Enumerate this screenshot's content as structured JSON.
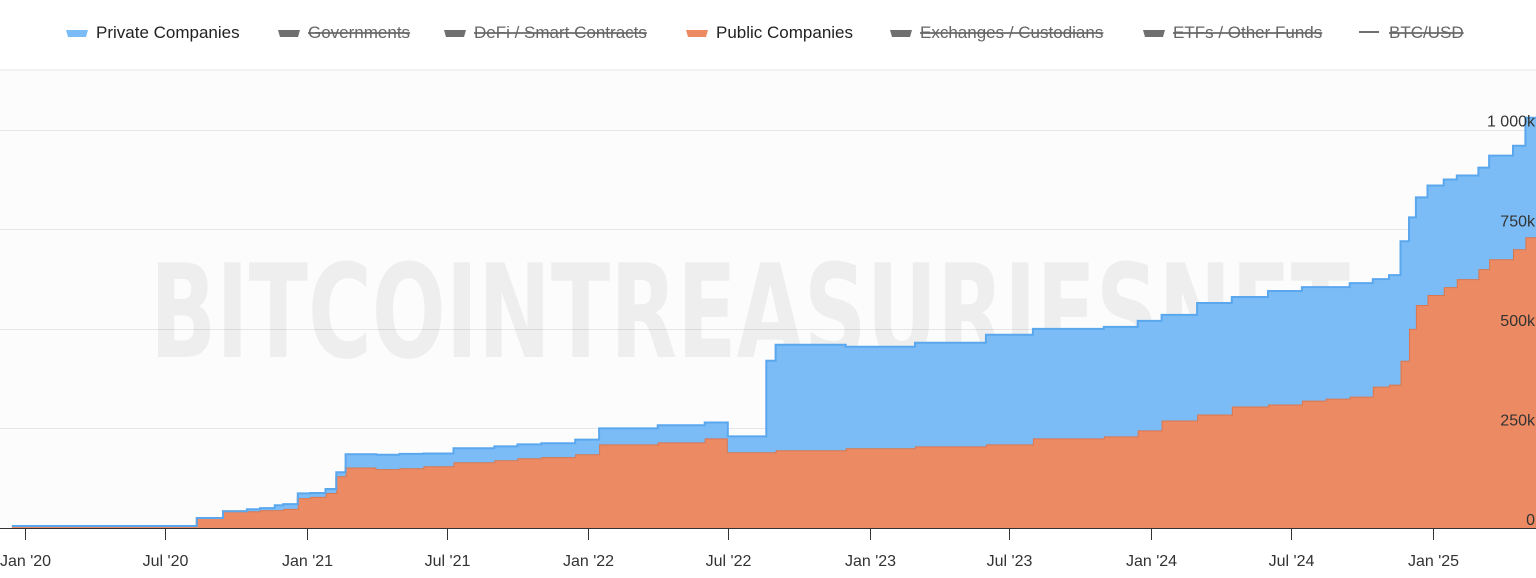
{
  "legend": [
    {
      "label": "Private Companies",
      "color": "#7cbcf6",
      "hidden": false,
      "symbol": "area"
    },
    {
      "label": "Governments",
      "color": "#6f6f6f",
      "hidden": true,
      "symbol": "area"
    },
    {
      "label": "DeFi / Smart Contracts",
      "color": "#6f6f6f",
      "hidden": true,
      "symbol": "area"
    },
    {
      "label": "Public Companies",
      "color": "#ec8a63",
      "hidden": false,
      "symbol": "area"
    },
    {
      "label": "Exchanges / Custodians",
      "color": "#6f6f6f",
      "hidden": true,
      "symbol": "area"
    },
    {
      "label": "ETFs / Other Funds",
      "color": "#6f6f6f",
      "hidden": true,
      "symbol": "area"
    },
    {
      "label": "BTC/USD",
      "color": "#6f6f6f",
      "hidden": true,
      "symbol": "line"
    }
  ],
  "watermark": {
    "text": "BITCOINTREASURIESNET",
    "tm": "tm"
  },
  "chart_data": {
    "type": "area",
    "stacked": true,
    "step": true,
    "x_start": "2019-12-15",
    "x_end": "2025-05-25",
    "ylim": [
      0,
      1150000
    ],
    "grid": true,
    "legend_position": "top",
    "y_axis_position": "right",
    "x_ticks": [
      {
        "date": "2020-01-01",
        "label": "Jan '20"
      },
      {
        "date": "2020-07-01",
        "label": "Jul '20"
      },
      {
        "date": "2021-01-01",
        "label": "Jan '21"
      },
      {
        "date": "2021-07-01",
        "label": "Jul '21"
      },
      {
        "date": "2022-01-01",
        "label": "Jan '22"
      },
      {
        "date": "2022-07-01",
        "label": "Jul '22"
      },
      {
        "date": "2023-01-01",
        "label": "Jan '23"
      },
      {
        "date": "2023-07-01",
        "label": "Jul '23"
      },
      {
        "date": "2024-01-01",
        "label": "Jan '24"
      },
      {
        "date": "2024-07-01",
        "label": "Jul '24"
      },
      {
        "date": "2025-01-01",
        "label": "Jan '25"
      }
    ],
    "y_ticks": [
      {
        "value": 0,
        "label": "0"
      },
      {
        "value": 250000,
        "label": "250k"
      },
      {
        "value": 500000,
        "label": "500k"
      },
      {
        "value": 750000,
        "label": "750k"
      },
      {
        "value": 1000000,
        "label": "1 000k"
      }
    ],
    "series": [
      {
        "name": "Public Companies",
        "color": "#ec8a63",
        "points": [
          [
            "2019-12-15",
            5000
          ],
          [
            "2020-08-10",
            5000
          ],
          [
            "2020-08-11",
            25000
          ],
          [
            "2020-09-14",
            42000
          ],
          [
            "2020-11-01",
            45000
          ],
          [
            "2020-12-01",
            48000
          ],
          [
            "2020-12-20",
            75000
          ],
          [
            "2021-01-05",
            78000
          ],
          [
            "2021-01-25",
            88000
          ],
          [
            "2021-02-08",
            130000
          ],
          [
            "2021-02-20",
            152000
          ],
          [
            "2021-04-01",
            148000
          ],
          [
            "2021-05-01",
            150000
          ],
          [
            "2021-06-01",
            155000
          ],
          [
            "2021-07-10",
            165000
          ],
          [
            "2021-09-01",
            170000
          ],
          [
            "2021-10-01",
            175000
          ],
          [
            "2021-11-01",
            178000
          ],
          [
            "2021-12-15",
            185000
          ],
          [
            "2022-01-15",
            210000
          ],
          [
            "2022-04-01",
            215000
          ],
          [
            "2022-06-01",
            225000
          ],
          [
            "2022-07-01",
            190000
          ],
          [
            "2022-09-01",
            195000
          ],
          [
            "2022-12-01",
            200000
          ],
          [
            "2023-03-01",
            205000
          ],
          [
            "2023-06-01",
            210000
          ],
          [
            "2023-08-01",
            225000
          ],
          [
            "2023-11-01",
            230000
          ],
          [
            "2023-12-15",
            245000
          ],
          [
            "2024-01-15",
            270000
          ],
          [
            "2024-03-01",
            285000
          ],
          [
            "2024-04-15",
            305000
          ],
          [
            "2024-06-01",
            310000
          ],
          [
            "2024-07-15",
            320000
          ],
          [
            "2024-08-15",
            325000
          ],
          [
            "2024-09-15",
            330000
          ],
          [
            "2024-10-15",
            355000
          ],
          [
            "2024-11-05",
            360000
          ],
          [
            "2024-11-20",
            420000
          ],
          [
            "2024-12-01",
            500000
          ],
          [
            "2024-12-10",
            560000
          ],
          [
            "2024-12-25",
            585000
          ],
          [
            "2025-01-15",
            605000
          ],
          [
            "2025-02-01",
            625000
          ],
          [
            "2025-03-01",
            650000
          ],
          [
            "2025-03-15",
            675000
          ],
          [
            "2025-04-15",
            700000
          ],
          [
            "2025-05-01",
            730000
          ],
          [
            "2025-05-25",
            760000
          ]
        ]
      },
      {
        "name": "Private Companies",
        "color": "#7cbcf6",
        "points": [
          [
            "2019-12-15",
            0
          ],
          [
            "2020-08-11",
            0
          ],
          [
            "2020-10-15",
            5000
          ],
          [
            "2020-11-20",
            12000
          ],
          [
            "2021-01-05",
            10000
          ],
          [
            "2021-02-20",
            33000
          ],
          [
            "2021-04-01",
            36000
          ],
          [
            "2021-06-01",
            32000
          ],
          [
            "2021-07-10",
            35000
          ],
          [
            "2021-09-01",
            35000
          ],
          [
            "2021-12-15",
            37000
          ],
          [
            "2022-01-15",
            40000
          ],
          [
            "2022-04-01",
            43000
          ],
          [
            "2022-06-01",
            40000
          ],
          [
            "2022-07-01",
            40000
          ],
          [
            "2022-08-20",
            230000
          ],
          [
            "2022-09-01",
            265000
          ],
          [
            "2022-12-01",
            255000
          ],
          [
            "2023-03-01",
            260000
          ],
          [
            "2023-06-01",
            275000
          ],
          [
            "2023-08-01",
            275000
          ],
          [
            "2023-11-01",
            275000
          ],
          [
            "2023-12-15",
            275000
          ],
          [
            "2024-01-15",
            265000
          ],
          [
            "2024-03-01",
            280000
          ],
          [
            "2024-04-15",
            275000
          ],
          [
            "2024-06-01",
            285000
          ],
          [
            "2024-07-15",
            285000
          ],
          [
            "2024-08-15",
            280000
          ],
          [
            "2024-09-15",
            285000
          ],
          [
            "2024-10-15",
            270000
          ],
          [
            "2024-11-05",
            275000
          ],
          [
            "2024-11-20",
            300000
          ],
          [
            "2024-12-01",
            280000
          ],
          [
            "2024-12-10",
            270000
          ],
          [
            "2024-12-25",
            275000
          ],
          [
            "2025-01-15",
            270000
          ],
          [
            "2025-02-01",
            260000
          ],
          [
            "2025-03-01",
            255000
          ],
          [
            "2025-03-15",
            260000
          ],
          [
            "2025-04-15",
            260000
          ],
          [
            "2025-05-01",
            300000
          ],
          [
            "2025-05-25",
            310000
          ]
        ]
      }
    ]
  }
}
